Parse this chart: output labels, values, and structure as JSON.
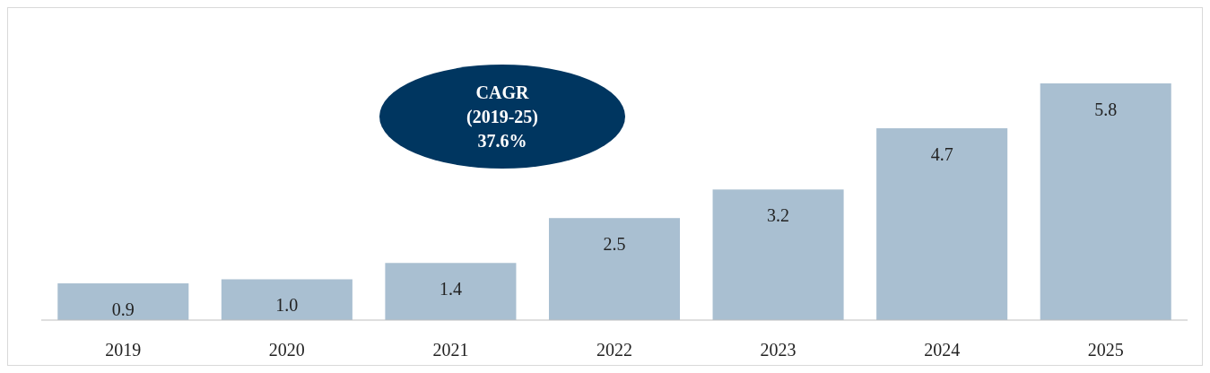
{
  "chart_data": {
    "type": "bar",
    "categories": [
      "2019",
      "2020",
      "2021",
      "2022",
      "2023",
      "2024",
      "2025"
    ],
    "values": [
      0.9,
      1.0,
      1.4,
      2.5,
      3.2,
      4.7,
      5.8
    ],
    "value_labels": [
      "0.9",
      "1.0",
      "1.4",
      "2.5",
      "3.2",
      "4.7",
      "5.8"
    ],
    "color": "#a9bfd1",
    "annotations": [
      "CAGR\n(2019-25)\n37.6%"
    ]
  }
}
